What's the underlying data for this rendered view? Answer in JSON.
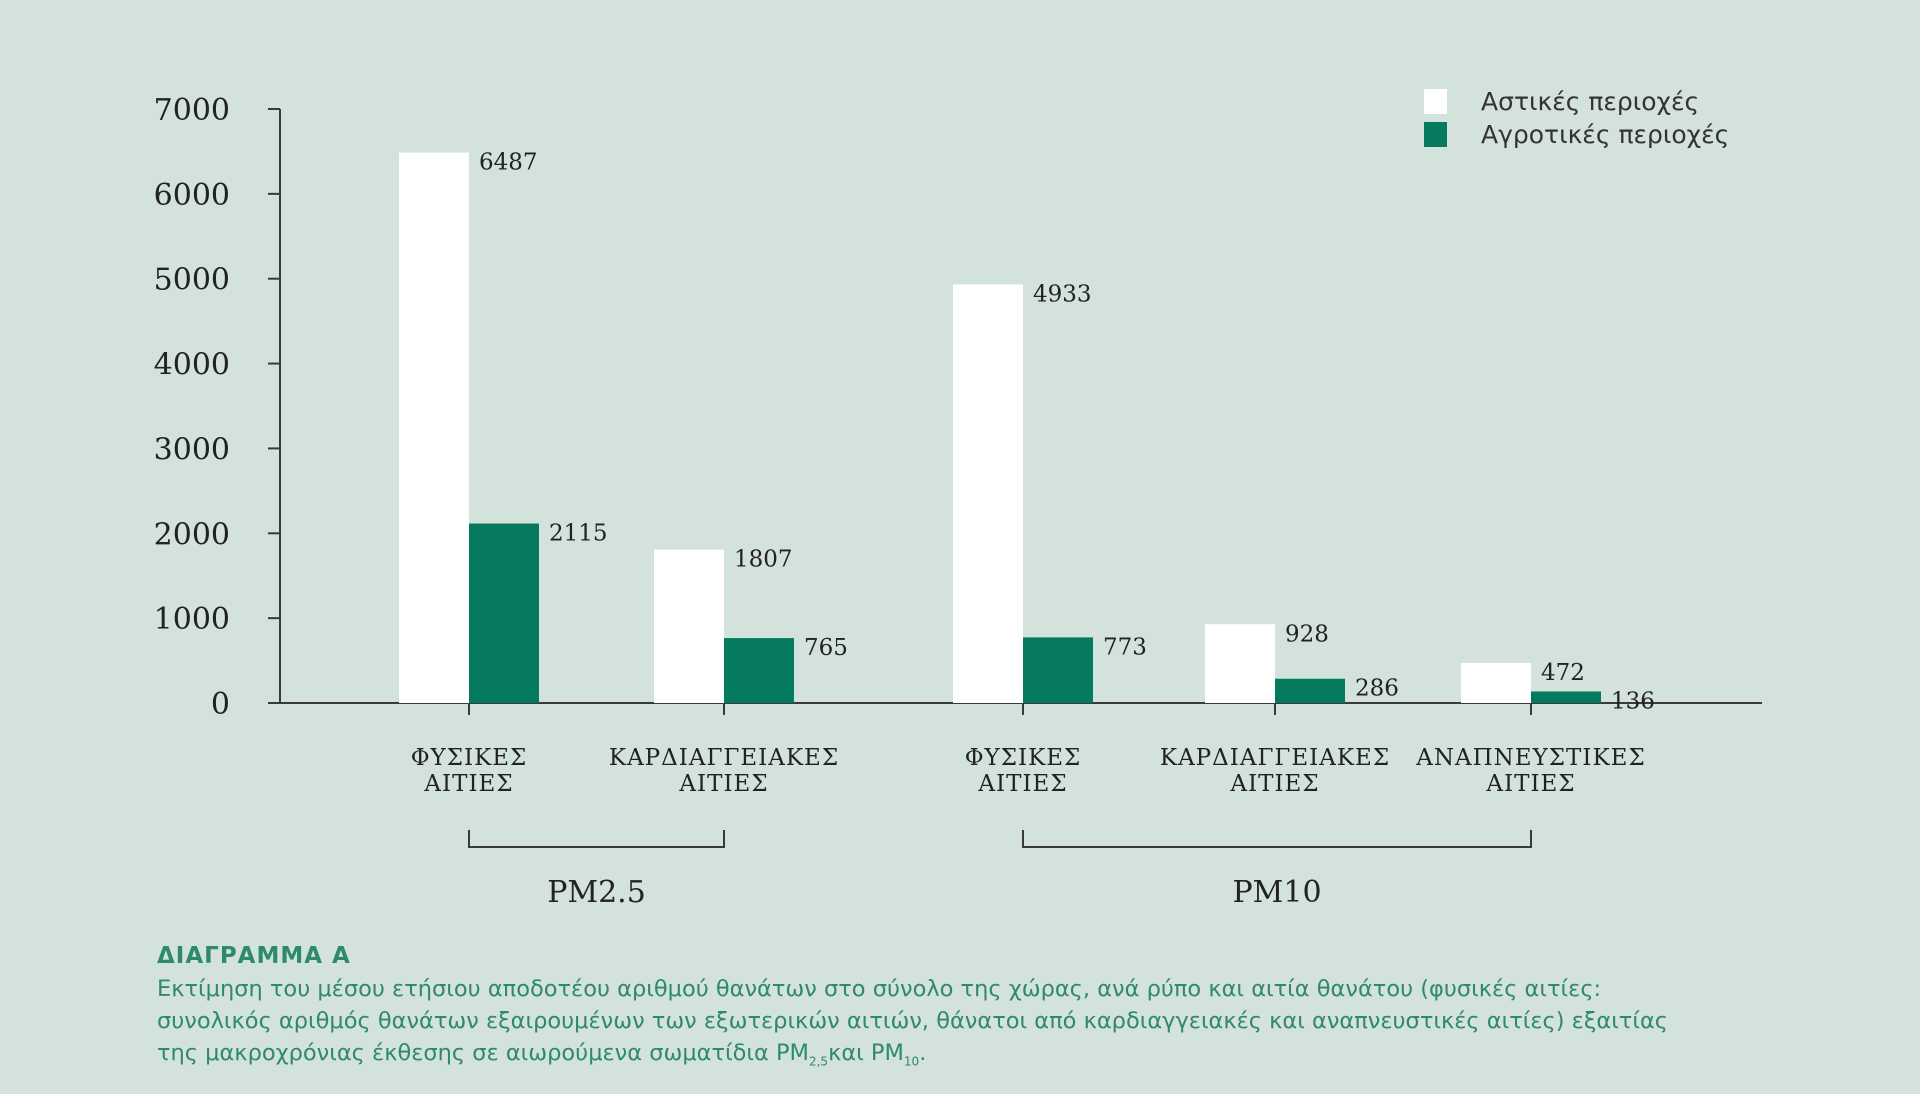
{
  "chart_data": {
    "type": "bar",
    "categories": [
      [
        "ΦΥΣΙΚΕΣ",
        "ΑΙΤΙΕΣ"
      ],
      [
        "ΚΑΡΔΙΑΓΓΕΙΑΚΕΣ",
        "ΑΙΤΙΕΣ"
      ],
      [
        "ΦΥΣΙΚΕΣ",
        "ΑΙΤΙΕΣ"
      ],
      [
        "ΚΑΡΔΙΑΓΓΕΙΑΚΕΣ",
        "ΑΙΤΙΕΣ"
      ],
      [
        "ΑΝΑΠΝΕΥΣΤΙΚΕΣ",
        "ΑΙΤΙΕΣ"
      ]
    ],
    "groups": [
      {
        "label": "PM2.5",
        "categories": [
          0,
          1
        ]
      },
      {
        "label": "PM10",
        "categories": [
          2,
          3,
          4
        ]
      }
    ],
    "series": [
      {
        "name": "Αστικές περιοχές",
        "color": "#ffffff",
        "values": [
          6487,
          1807,
          4933,
          928,
          472
        ]
      },
      {
        "name": "Αγροτικές περιοχές",
        "color": "#067a5e",
        "values": [
          2115,
          765,
          773,
          286,
          136
        ]
      }
    ],
    "yticks": [
      0,
      1000,
      2000,
      3000,
      4000,
      5000,
      6000,
      7000
    ],
    "ylim": [
      0,
      7000
    ],
    "legend_position": "top-right",
    "grid": false
  },
  "caption": {
    "title": "ΔΙΑΓΡΑΜΜΑ Α",
    "line1": "Εκτίμηση του μέσου ετήσιου αποδοτέου αριθμού θανάτων στο σύνολο της χώρας, ανά ρύπο και αιτία θανάτου (φυσικές αιτίες:",
    "line2": "συνολικός αριθμός θανάτων εξαιρουμένων των εξωτερικών αιτιών, θάνατοι από καρδιαγγειακές και αναπνευστικές αιτίες) εξαιτίας",
    "line3_a": "της μακροχρόνιας έκθεσης σε αιωρούμενα σωματίδια PM",
    "line3_sub1": "2,5",
    "line3_b": "και PM",
    "line3_sub2": "10",
    "line3_c": "."
  }
}
